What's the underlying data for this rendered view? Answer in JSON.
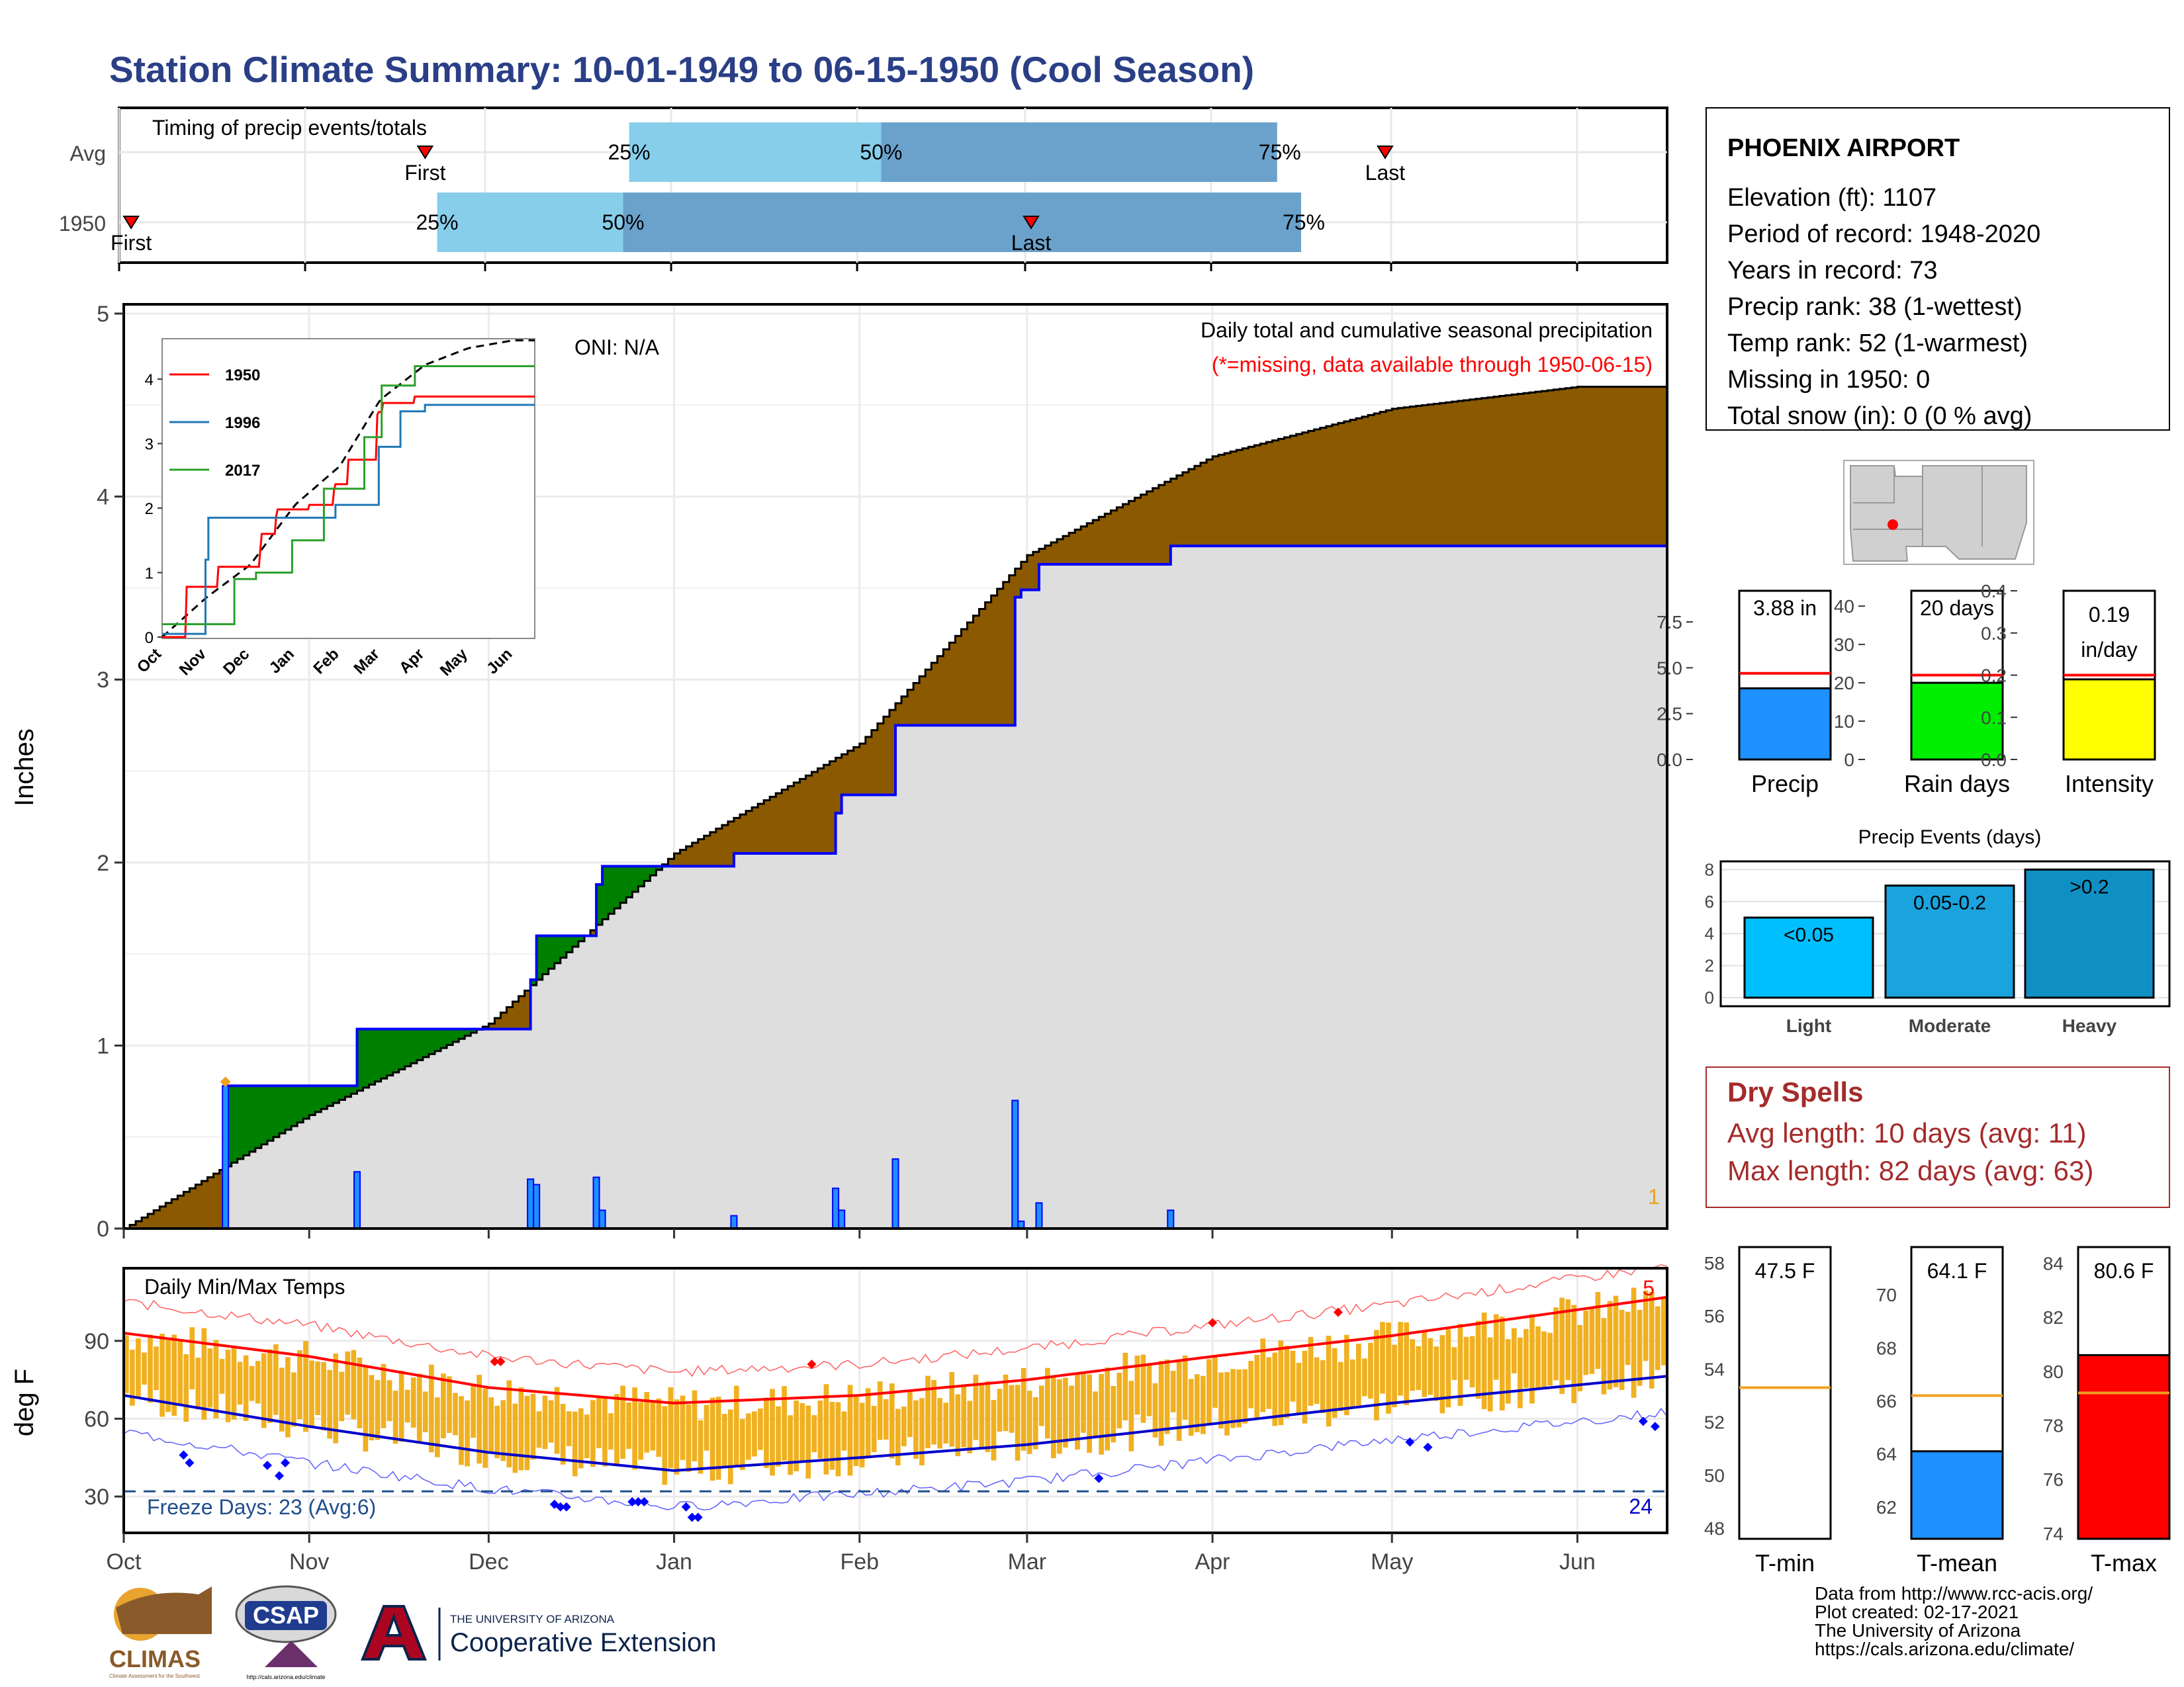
{
  "title": "Station Climate Summary: 10-01-1949 to 06-15-1950 (Cool Season)",
  "colors": {
    "title": "#2a3f86",
    "green_surplus": "#008000",
    "brown_deficit": "#8b5a00",
    "normal_fill": "#dedede",
    "precip_bar": "#1e90ff",
    "orange": "#f0b020",
    "red": "#ff0000",
    "blue": "#0000cc",
    "dry_spell": "#a52a2a",
    "light": "#00bfff",
    "moderate": "#1aa3dc",
    "heavy": "#0f8fc4",
    "rain_days": "#00ee00",
    "intensity": "#ffff00",
    "tmean": "#1e90ff",
    "tmax": "#ff0000"
  },
  "timing": {
    "label": "Timing of precip events/totals",
    "rows": [
      {
        "name": "Avg",
        "first_label": "First",
        "last_label": "Last",
        "p25": "25%",
        "p50": "50%",
        "p75": "75%",
        "first_day": 51,
        "last_day": 211,
        "q25": 85,
        "q50": 127,
        "q75": 193
      },
      {
        "name": "1950",
        "first_label": "First",
        "last_label": "Last",
        "p25": "25%",
        "p50": "50%",
        "p75": "75%",
        "first_day": 2,
        "last_day": 152,
        "q25": 53,
        "q50": 84,
        "q75": 197
      }
    ]
  },
  "main_panel": {
    "ylabel": "Inches",
    "oni": "ONI: N/A",
    "note1": "Daily total and cumulative seasonal precipitation",
    "note2": "(*=missing, data available through 1950-06-15)",
    "corner_count": "1",
    "yticks": [
      "0",
      "1",
      "2",
      "3",
      "4",
      "5"
    ]
  },
  "months": [
    "Oct",
    "Nov",
    "Dec",
    "Jan",
    "Feb",
    "Mar",
    "Apr",
    "May",
    "Jun"
  ],
  "inset": {
    "series": [
      {
        "name": "1950",
        "color": "#ff0000"
      },
      {
        "name": "1996",
        "color": "#1f77b4"
      },
      {
        "name": "2017",
        "color": "#2ca02c"
      }
    ],
    "yticks": [
      "0",
      "1",
      "2",
      "3",
      "4"
    ]
  },
  "temp_panel": {
    "title": "Daily Min/Max Temps",
    "ylabel": "deg F",
    "freeze": "Freeze Days: 23 (Avg:6)",
    "count_high": "5",
    "count_low": "24",
    "yticks": [
      "30",
      "60",
      "90"
    ]
  },
  "station": {
    "name": "PHOENIX AIRPORT",
    "lines": [
      "Elevation (ft): 1107",
      "Period of record: 1948-2020",
      "Years in record: 73",
      "Precip rank: 38 (1-wettest)",
      "Temp rank: 52 (1-warmest)",
      "Missing in 1950: 0",
      "Total snow (in): 0 (0 % avg)"
    ]
  },
  "mini_bars": [
    {
      "label": "Precip",
      "value_text": "3.88 in",
      "value": 3.88,
      "avg": 4.7,
      "ymax": 9.2,
      "ticks": [
        "0.0",
        "2.5",
        "5.0",
        "7.5"
      ]
    },
    {
      "label": "Rain days",
      "value_text": "20 days",
      "value": 20,
      "avg": 22,
      "ymax": 44,
      "ticks": [
        "0",
        "10",
        "20",
        "30",
        "40"
      ]
    },
    {
      "label": "Intensity",
      "value_text1": "0.19",
      "value_text2": "in/day",
      "value": 0.19,
      "avg": 0.2,
      "ymax": 0.4,
      "ticks": [
        "0.0",
        "0.1",
        "0.2",
        "0.3",
        "0.4"
      ]
    }
  ],
  "events": {
    "title": "Precip Events (days)",
    "categories": [
      "Light",
      "Moderate",
      "Heavy"
    ],
    "bar_labels": [
      "<0.05",
      "0.05-0.2",
      ">0.2"
    ],
    "values": [
      5,
      7,
      8
    ],
    "ticks": [
      "0",
      "2",
      "4",
      "6",
      "8"
    ]
  },
  "dry_spells": {
    "title": "Dry Spells",
    "avg": "Avg length: 10 days (avg: 11)",
    "max": "Max length: 82 days (avg: 63)"
  },
  "temp_bars": [
    {
      "label": "T-min",
      "value_text": "47.5 F",
      "value": 47.5,
      "avg": 53.3,
      "ymin": 47.6,
      "ymax": 58.6,
      "ticks": [
        "48",
        "50",
        "52",
        "54",
        "56",
        "58"
      ]
    },
    {
      "label": "T-mean",
      "value_text": "64.1 F",
      "value": 64.1,
      "avg": 66.2,
      "ymin": 60.8,
      "ymax": 71.8,
      "ticks": [
        "62",
        "64",
        "66",
        "68",
        "70"
      ]
    },
    {
      "label": "T-max",
      "value_text": "80.6 F",
      "value": 80.6,
      "avg": 79.2,
      "ymin": 73.8,
      "ymax": 84.6,
      "ticks": [
        "74",
        "76",
        "78",
        "80",
        "82",
        "84"
      ]
    }
  ],
  "footer": [
    "Data from http://www.rcc-acis.org/",
    "Plot created: 02-17-2021",
    "The University of Arizona",
    "https://cals.arizona.edu/climate/"
  ],
  "logos": {
    "climas": "CLIMAS",
    "climas_sub": "Climate Assessment for the Southwest",
    "csap": "CSAP",
    "csap_url": "http://cals.arizona.edu/climate",
    "ua_small": "THE UNIVERSITY OF ARIZONA",
    "ua_big": "Cooperative Extension"
  },
  "chart_data": [
    {
      "type": "area",
      "title": "Daily total and cumulative seasonal precipitation",
      "ylabel": "Inches",
      "ylim": [
        0,
        5
      ],
      "x": [
        "Oct",
        "Nov",
        "Dec",
        "Jan",
        "Feb",
        "Mar",
        "Apr",
        "May",
        "Jun"
      ],
      "series": [
        {
          "name": "Normal cumulative",
          "values": [
            0.0,
            0.62,
            1.12,
            2.05,
            2.65,
            3.68,
            4.22,
            4.48,
            4.6
          ]
        },
        {
          "name": "1950 cumulative",
          "values": [
            0.0,
            0.82,
            1.13,
            2.05,
            2.46,
            3.88,
            3.88,
            3.88,
            3.88
          ]
        }
      ],
      "daily_events": [
        {
          "date": "1949-10-18",
          "value": 0.78
        },
        {
          "date": "1949-11-09",
          "value": 0.31
        },
        {
          "date": "1949-12-08",
          "value": 0.27
        },
        {
          "date": "1949-12-09",
          "value": 0.24
        },
        {
          "date": "1949-12-19",
          "value": 0.28
        },
        {
          "date": "1949-12-20",
          "value": 0.1
        },
        {
          "date": "1950-01-11",
          "value": 0.07
        },
        {
          "date": "1950-01-28",
          "value": 0.22
        },
        {
          "date": "1950-01-29",
          "value": 0.1
        },
        {
          "date": "1950-02-07",
          "value": 0.38
        },
        {
          "date": "1950-02-27",
          "value": 0.7
        },
        {
          "date": "1950-02-28",
          "value": 0.04
        },
        {
          "date": "1950-03-03",
          "value": 0.14
        },
        {
          "date": "1950-03-25",
          "value": 0.1
        }
      ]
    },
    {
      "type": "line",
      "title": "Daily Min/Max Temps",
      "ylabel": "deg F",
      "x": [
        "Oct",
        "Nov",
        "Dec",
        "Jan",
        "Feb",
        "Mar",
        "Apr",
        "May",
        "Jun"
      ],
      "series": [
        {
          "name": "Normal max",
          "values": [
            93,
            84,
            72,
            66,
            69,
            75,
            84,
            92,
            102
          ]
        },
        {
          "name": "Normal min",
          "values": [
            69,
            57,
            47,
            40,
            45,
            50,
            58,
            66,
            73
          ]
        }
      ],
      "ylim": [
        16,
        118
      ]
    }
  ]
}
